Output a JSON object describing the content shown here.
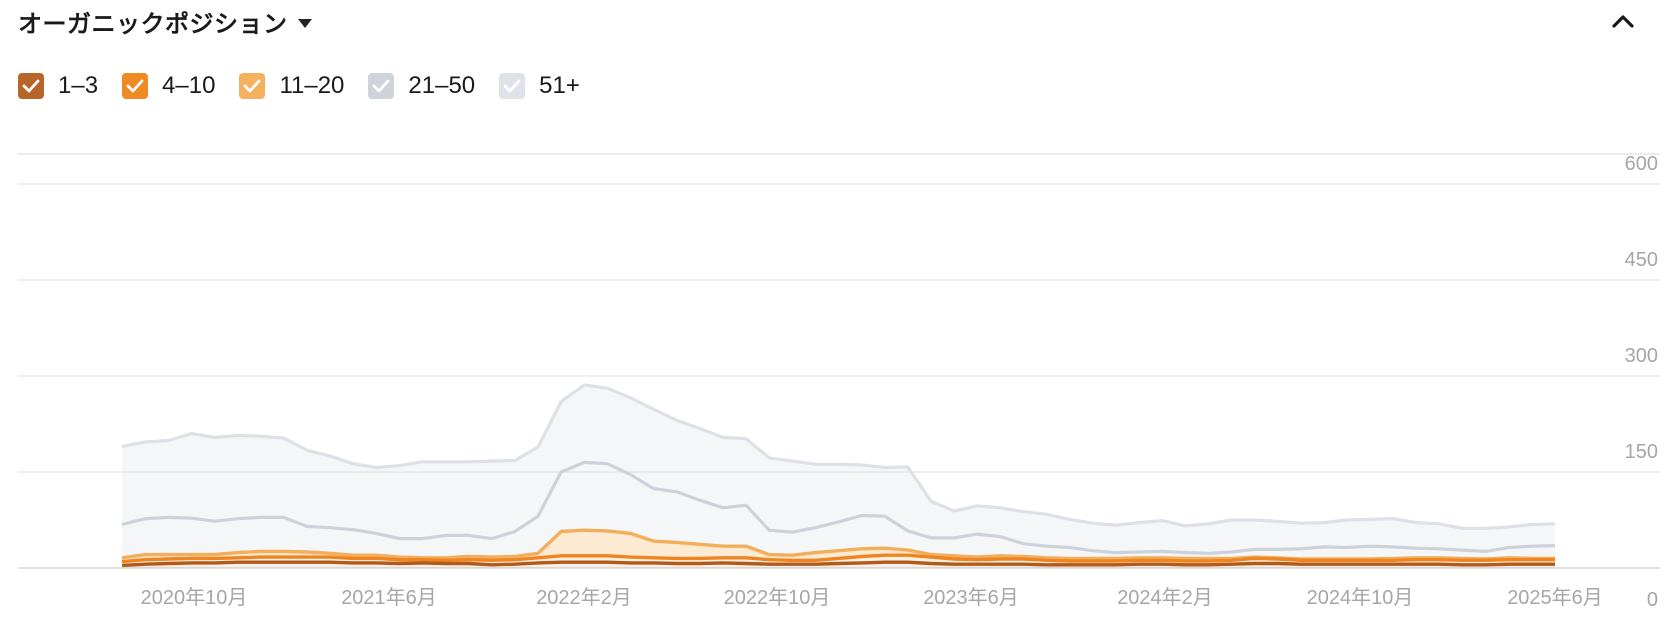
{
  "header": {
    "title": "オーガニックポジション"
  },
  "legend": [
    {
      "label": "1–3",
      "color": "#b8652a",
      "checked": true
    },
    {
      "label": "4–10",
      "color": "#f08a24",
      "checked": true
    },
    {
      "label": "11–20",
      "color": "#f4b25f",
      "checked": true
    },
    {
      "label": "21–50",
      "color": "#cfd4dc",
      "checked": true
    },
    {
      "label": "51+",
      "color": "#dfe2e8",
      "checked": true
    }
  ],
  "chart_data": {
    "type": "area",
    "stacked": true,
    "ylim": [
      0,
      600
    ],
    "y_ticks": [
      0,
      150,
      300,
      450,
      600
    ],
    "x_tick_labels": [
      "2020年10月",
      "2021年6月",
      "2022年2月",
      "2022年10月",
      "2023年6月",
      "2024年2月",
      "2024年10月",
      "2025年6月"
    ],
    "x_start": "2020年7月",
    "x_end": "2025年6月",
    "series": [
      {
        "name": "1–3",
        "color": "#b8652a",
        "values": [
          4,
          6,
          7,
          8,
          8,
          9,
          9,
          9,
          9,
          9,
          8,
          8,
          7,
          8,
          7,
          7,
          5,
          6,
          8,
          9,
          9,
          9,
          8,
          8,
          7,
          7,
          8,
          7,
          6,
          6,
          6,
          7,
          8,
          9,
          9,
          7,
          6,
          6,
          6,
          6,
          5,
          5,
          5,
          5,
          6,
          6,
          5,
          5,
          6,
          7,
          7,
          6,
          6,
          6,
          6,
          6,
          6,
          6,
          5,
          5,
          6,
          6,
          6
        ]
      },
      {
        "name": "4–10",
        "color": "#f08a24",
        "values": [
          6,
          7,
          7,
          7,
          7,
          7,
          8,
          8,
          8,
          8,
          7,
          7,
          6,
          5,
          5,
          6,
          7,
          7,
          8,
          10,
          10,
          10,
          9,
          8,
          8,
          8,
          8,
          9,
          7,
          6,
          6,
          8,
          10,
          11,
          11,
          10,
          8,
          7,
          8,
          8,
          7,
          6,
          6,
          6,
          6,
          6,
          6,
          6,
          6,
          8,
          7,
          6,
          6,
          6,
          6,
          6,
          7,
          7,
          7,
          7,
          7,
          7,
          7
        ]
      },
      {
        "name": "11–20",
        "color": "#f4b25f",
        "values": [
          6,
          8,
          7,
          6,
          6,
          8,
          9,
          9,
          8,
          6,
          5,
          5,
          4,
          3,
          4,
          5,
          5,
          5,
          7,
          38,
          40,
          39,
          37,
          26,
          25,
          22,
          18,
          18,
          8,
          8,
          12,
          12,
          12,
          11,
          8,
          4,
          5,
          4,
          5,
          4,
          4,
          4,
          4,
          4,
          4,
          4,
          4,
          4,
          3,
          2,
          2,
          2,
          2,
          2,
          2,
          3,
          3,
          3,
          3,
          2,
          3,
          2,
          2
        ]
      },
      {
        "name": "21–50",
        "color": "#cfd4dc",
        "values": [
          52,
          56,
          58,
          57,
          52,
          53,
          53,
          53,
          40,
          40,
          40,
          34,
          29,
          30,
          35,
          33,
          29,
          39,
          58,
          93,
          106,
          105,
          92,
          82,
          79,
          69,
          60,
          64,
          38,
          36,
          39,
          45,
          52,
          50,
          30,
          26,
          28,
          36,
          30,
          20,
          18,
          17,
          12,
          9,
          9,
          10,
          9,
          8,
          10,
          12,
          13,
          16,
          19,
          18,
          20,
          18,
          15,
          14,
          13,
          12,
          16,
          19,
          20
        ]
      },
      {
        "name": "51+",
        "color": "#dfe2e8",
        "values": [
          122,
          120,
          120,
          132,
          131,
          130,
          127,
          124,
          119,
          112,
          103,
          103,
          114,
          120,
          115,
          115,
          121,
          111,
          108,
          110,
          121,
          118,
          120,
          124,
          112,
          112,
          110,
          104,
          113,
          111,
          99,
          90,
          79,
          76,
          100,
          57,
          42,
          44,
          45,
          50,
          50,
          44,
          43,
          43,
          46,
          48,
          42,
          46,
          50,
          46,
          44,
          40,
          38,
          43,
          42,
          44,
          40,
          39,
          34,
          36,
          32,
          34,
          34
        ]
      }
    ]
  }
}
